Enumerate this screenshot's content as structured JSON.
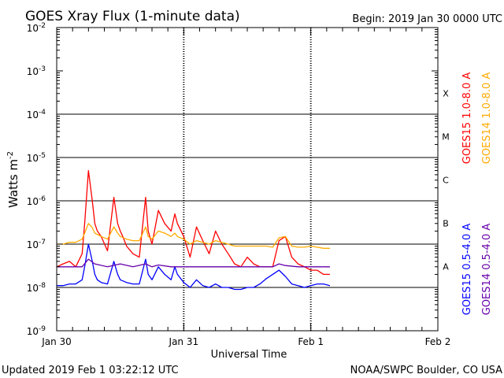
{
  "chart_data": {
    "type": "line",
    "title": "GOES Xray Flux (1-minute data)",
    "begin_label": "Begin:  2019 Jan 30 0000 UTC",
    "ylabel": "Watts m",
    "ylabel_sup": "-2",
    "xlabel": "Universal Time",
    "x_ticks": [
      "Jan 30",
      "Jan 31",
      "Feb 1",
      "Feb 2"
    ],
    "y_scale": "log",
    "ylim": [
      1e-09,
      0.01
    ],
    "y_tick_labels": [
      {
        "exp": -2,
        "text": "10",
        "sup": "-2"
      },
      {
        "exp": -3,
        "text": "10",
        "sup": "-3"
      },
      {
        "exp": -4,
        "text": "10",
        "sup": "-4"
      },
      {
        "exp": -5,
        "text": "10",
        "sup": "-5"
      },
      {
        "exp": -6,
        "text": "10",
        "sup": "-6"
      },
      {
        "exp": -7,
        "text": "10",
        "sup": "-7"
      },
      {
        "exp": -8,
        "text": "10",
        "sup": "-8"
      },
      {
        "exp": -9,
        "text": "10",
        "sup": "-9"
      }
    ],
    "flare_classes": [
      {
        "label": "X",
        "level": 0.0001
      },
      {
        "label": "M",
        "level": 1e-05
      },
      {
        "label": "C",
        "level": 1e-06
      },
      {
        "label": "B",
        "level": 1e-07
      },
      {
        "label": "A",
        "level": 1e-08
      }
    ],
    "series": [
      {
        "name": "GOES15 1.0-8.0 A",
        "color": "#ff0000",
        "x_days": [
          0.0,
          0.05,
          0.1,
          0.15,
          0.2,
          0.22,
          0.25,
          0.28,
          0.3,
          0.32,
          0.35,
          0.4,
          0.45,
          0.48,
          0.5,
          0.52,
          0.55,
          0.6,
          0.65,
          0.7,
          0.72,
          0.75,
          0.8,
          0.85,
          0.9,
          0.93,
          0.95,
          1.0,
          1.05,
          1.1,
          1.15,
          1.2,
          1.25,
          1.3,
          1.35,
          1.4,
          1.45,
          1.5,
          1.55,
          1.6,
          1.65,
          1.7,
          1.75,
          1.8,
          1.85,
          1.9,
          1.95,
          2.0,
          2.05,
          2.1,
          2.15
        ],
        "y": [
          3e-08,
          3.5e-08,
          4e-08,
          3e-08,
          6e-08,
          3e-07,
          5e-06,
          1e-06,
          3e-07,
          2e-07,
          1.5e-07,
          7e-08,
          1.2e-06,
          3e-07,
          2e-07,
          1.5e-07,
          9e-08,
          6e-08,
          5e-08,
          1.2e-06,
          2e-07,
          1e-07,
          6e-07,
          3e-07,
          2e-07,
          5e-07,
          3e-07,
          1.5e-07,
          5e-08,
          2.5e-07,
          1.2e-07,
          6e-08,
          2e-07,
          1e-07,
          6e-08,
          3.5e-08,
          3e-08,
          5e-08,
          3.5e-08,
          3e-08,
          3e-08,
          3e-08,
          1.2e-07,
          1.5e-07,
          5e-08,
          3.5e-08,
          3e-08,
          2.5e-08,
          2.5e-08,
          2e-08,
          2e-08
        ]
      },
      {
        "name": "GOES14 1.0-8.0 A",
        "color": "#ffaa00",
        "x_days": [
          0.0,
          0.05,
          0.1,
          0.15,
          0.2,
          0.22,
          0.25,
          0.28,
          0.3,
          0.35,
          0.4,
          0.45,
          0.48,
          0.5,
          0.55,
          0.6,
          0.65,
          0.7,
          0.72,
          0.75,
          0.8,
          0.85,
          0.9,
          0.93,
          0.95,
          1.0,
          1.05,
          1.1,
          1.15,
          1.2,
          1.25,
          1.3,
          1.35,
          1.4,
          1.45,
          1.5,
          1.55,
          1.6,
          1.65,
          1.7,
          1.75,
          1.8,
          1.85,
          1.9,
          1.95,
          2.0,
          2.05,
          2.1,
          2.15
        ],
        "y": [
          1e-07,
          1e-07,
          1.1e-07,
          1.1e-07,
          1.3e-07,
          1.8e-07,
          3e-07,
          2.4e-07,
          1.8e-07,
          1.5e-07,
          1.3e-07,
          2.5e-07,
          1.8e-07,
          1.5e-07,
          1.3e-07,
          1.2e-07,
          1.2e-07,
          2.5e-07,
          1.5e-07,
          1.3e-07,
          2e-07,
          1.8e-07,
          1.5e-07,
          1.8e-07,
          1.5e-07,
          1.3e-07,
          1e-07,
          1.2e-07,
          1.1e-07,
          1e-07,
          1.2e-07,
          1.1e-07,
          1e-07,
          9e-08,
          9e-08,
          9e-08,
          9e-08,
          9e-08,
          9e-08,
          8.5e-08,
          1.4e-07,
          1.5e-07,
          9e-08,
          8.5e-08,
          8.5e-08,
          9e-08,
          8.5e-08,
          8e-08,
          8e-08
        ]
      },
      {
        "name": "GOES15 0.5-4.0 A",
        "color": "#0000ff",
        "x_days": [
          0.0,
          0.05,
          0.1,
          0.15,
          0.2,
          0.22,
          0.25,
          0.28,
          0.3,
          0.32,
          0.35,
          0.4,
          0.45,
          0.48,
          0.5,
          0.55,
          0.6,
          0.65,
          0.7,
          0.72,
          0.75,
          0.8,
          0.85,
          0.9,
          0.93,
          0.95,
          1.0,
          1.05,
          1.1,
          1.15,
          1.2,
          1.25,
          1.3,
          1.35,
          1.4,
          1.45,
          1.5,
          1.55,
          1.6,
          1.65,
          1.7,
          1.75,
          1.8,
          1.85,
          1.9,
          1.95,
          2.0,
          2.05,
          2.1,
          2.15
        ],
        "y": [
          1.1e-08,
          1.1e-08,
          1.2e-08,
          1.2e-08,
          1.5e-08,
          3e-08,
          1e-07,
          4e-08,
          2e-08,
          1.5e-08,
          1.3e-08,
          1.2e-08,
          4e-08,
          2e-08,
          1.5e-08,
          1.3e-08,
          1.2e-08,
          1.2e-08,
          4.5e-08,
          2e-08,
          1.5e-08,
          3e-08,
          2e-08,
          1.5e-08,
          3e-08,
          2e-08,
          1.3e-08,
          1e-08,
          1.5e-08,
          1.1e-08,
          1e-08,
          1.2e-08,
          1e-08,
          1e-08,
          9e-09,
          9e-09,
          1e-08,
          1e-08,
          1.2e-08,
          1.6e-08,
          2e-08,
          2.5e-08,
          1.8e-08,
          1.2e-08,
          1.1e-08,
          1e-08,
          1.1e-08,
          1.2e-08,
          1.2e-08,
          1.1e-08
        ]
      },
      {
        "name": "GOES14 0.5-4.0 A",
        "color": "#6600aa",
        "x_days": [
          0.0,
          0.1,
          0.2,
          0.25,
          0.3,
          0.4,
          0.5,
          0.6,
          0.7,
          0.75,
          0.8,
          0.9,
          1.0,
          1.1,
          1.2,
          1.3,
          1.4,
          1.5,
          1.6,
          1.7,
          1.75,
          1.8,
          1.9,
          2.0,
          2.1,
          2.15
        ],
        "y": [
          3e-08,
          3e-08,
          3e-08,
          4.5e-08,
          3.5e-08,
          3e-08,
          3.5e-08,
          3e-08,
          3.5e-08,
          3e-08,
          3.3e-08,
          3e-08,
          3e-08,
          3e-08,
          3e-08,
          3e-08,
          3e-08,
          3e-08,
          3e-08,
          3e-08,
          3.5e-08,
          3.2e-08,
          3e-08,
          3e-08,
          3e-08,
          3e-08
        ]
      }
    ]
  },
  "footer": {
    "updated": "Updated 2019 Feb  1 03:22:12 UTC",
    "credit": "NOAA/SWPC Boulder, CO USA"
  }
}
